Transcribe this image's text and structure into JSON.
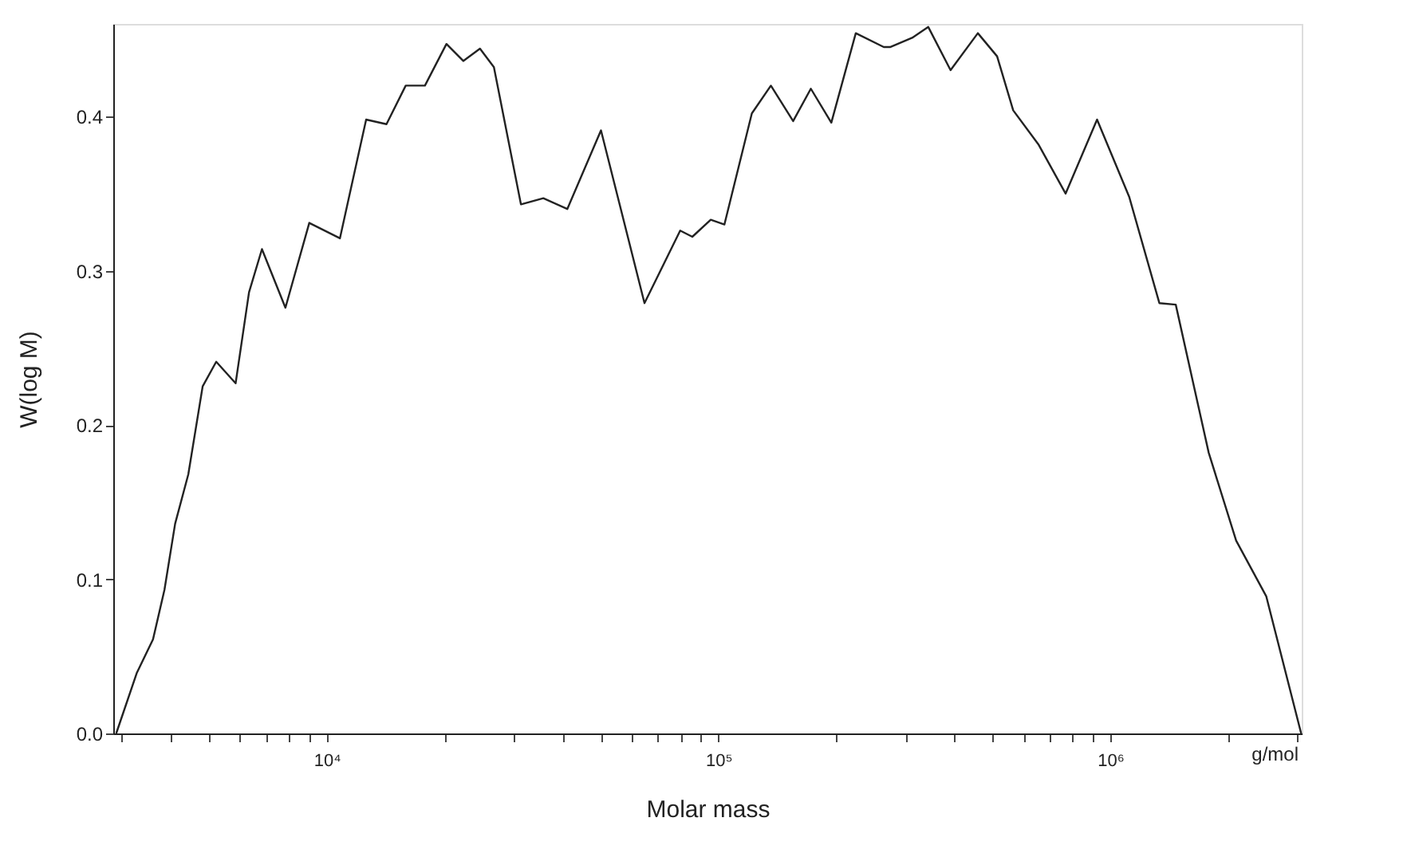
{
  "chart_data": {
    "type": "line",
    "xlabel": "Molar mass",
    "ylabel": "W(log M)",
    "log": "x",
    "xlim": [
      2850,
      3080000
    ],
    "ylim": [
      0,
      0.46
    ],
    "grid": false,
    "marker": "none",
    "line_style": "solid",
    "xticks": [
      {
        "value": 3000,
        "label": null
      },
      {
        "value": 4000,
        "label": null
      },
      {
        "value": 5000,
        "label": null
      },
      {
        "value": 6000,
        "label": null
      },
      {
        "value": 7000,
        "label": null
      },
      {
        "value": 8000,
        "label": null
      },
      {
        "value": 9000,
        "label": null
      },
      {
        "value": 10000,
        "label": "10⁴"
      },
      {
        "value": 20000,
        "label": null
      },
      {
        "value": 30000,
        "label": null
      },
      {
        "value": 40000,
        "label": null
      },
      {
        "value": 50000,
        "label": null
      },
      {
        "value": 60000,
        "label": null
      },
      {
        "value": 70000,
        "label": null
      },
      {
        "value": 80000,
        "label": null
      },
      {
        "value": 90000,
        "label": null
      },
      {
        "value": 100000,
        "label": "10⁵"
      },
      {
        "value": 200000,
        "label": null
      },
      {
        "value": 300000,
        "label": null
      },
      {
        "value": 400000,
        "label": null
      },
      {
        "value": 500000,
        "label": null
      },
      {
        "value": 600000,
        "label": null
      },
      {
        "value": 700000,
        "label": null
      },
      {
        "value": 800000,
        "label": null
      },
      {
        "value": 900000,
        "label": null
      },
      {
        "value": 1000000,
        "label": "10⁶"
      },
      {
        "value": 2000000,
        "label": null
      },
      {
        "value": 3000000,
        "label": null
      }
    ],
    "yticks": [
      {
        "value": 0,
        "label": "0.0"
      },
      0.1,
      0.2,
      0.3,
      0.4
    ],
    "annotations": [
      "g/mol"
    ],
    "series": [
      {
        "color": "#222222",
        "x": [
          2900,
          3270,
          3600,
          3850,
          4100,
          4430,
          4820,
          5220,
          5850,
          6330,
          6830,
          7840,
          9020,
          10800,
          12600,
          14200,
          15900,
          17800,
          20200,
          22300,
          24600,
          26700,
          31300,
          35700,
          41100,
          50100,
          64700,
          79800,
          85700,
          95500,
          103500,
          121600,
          136000,
          155000,
          172000,
          194000,
          224000,
          264000,
          274000,
          312000,
          343000,
          391000,
          459000,
          514000,
          565000,
          655000,
          769000,
          925000,
          1117000,
          1334000,
          1469000,
          1783000,
          2095000,
          2500000,
          3070000
        ],
        "values": [
          0,
          0.039,
          0.061,
          0.093,
          0.136,
          0.168,
          0.225,
          0.241,
          0.227,
          0.286,
          0.314,
          0.276,
          0.331,
          0.321,
          0.398,
          0.395,
          0.42,
          0.42,
          0.447,
          0.436,
          0.444,
          0.432,
          0.343,
          0.347,
          0.34,
          0.391,
          0.279,
          0.326,
          0.322,
          0.333,
          0.33,
          0.402,
          0.42,
          0.397,
          0.418,
          0.396,
          0.454,
          0.445,
          0.445,
          0.451,
          0.458,
          0.43,
          0.454,
          0.439,
          0.404,
          0.382,
          0.35,
          0.398,
          0.348,
          0.279,
          0.278,
          0.182,
          0.125,
          0.089,
          0
        ]
      }
    ]
  }
}
